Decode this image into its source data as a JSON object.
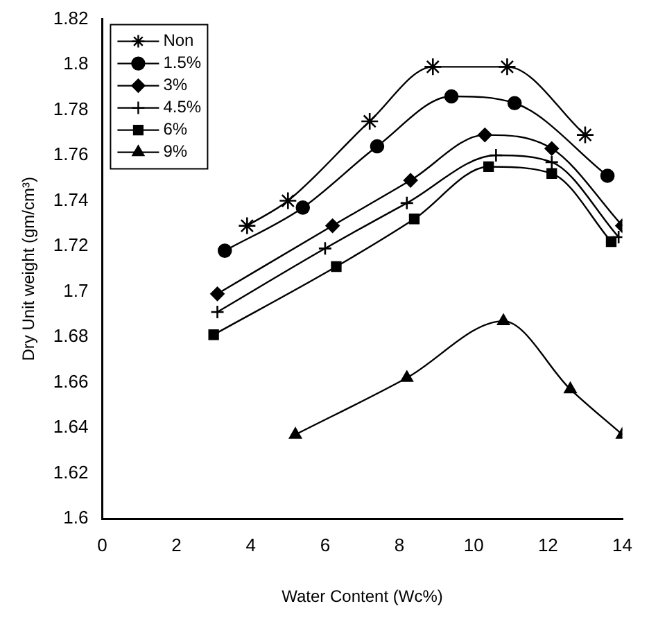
{
  "chart_data": {
    "type": "line",
    "xlabel": "Water Content (Wc%)",
    "ylabel": "Dry Unit weight (gm/cm³)",
    "xlim": [
      0,
      14
    ],
    "xticks": [
      0,
      2,
      4,
      6,
      8,
      10,
      12,
      14
    ],
    "ylim": [
      1.6,
      1.82
    ],
    "yticks": [
      1.6,
      1.62,
      1.64,
      1.66,
      1.68,
      1.7,
      1.72,
      1.74,
      1.76,
      1.78,
      1.8,
      1.82
    ],
    "grid": false,
    "legend": "top left",
    "line_style": "solid",
    "series": [
      {
        "name": "Non",
        "color": "#000000",
        "marker": "cross",
        "x": [
          3.9,
          5.0,
          7.2,
          8.9,
          10.9,
          13.0
        ],
        "values": [
          1.729,
          1.74,
          1.775,
          1.799,
          1.799,
          1.769
        ]
      },
      {
        "name": "1.5%",
        "color": "#000000",
        "marker": "circle",
        "x": [
          3.3,
          5.4,
          7.4,
          9.4,
          11.1,
          13.6
        ],
        "values": [
          1.718,
          1.737,
          1.764,
          1.786,
          1.783,
          1.751
        ]
      },
      {
        "name": "3%",
        "color": "#000000",
        "marker": "diamond",
        "x": [
          3.1,
          6.2,
          8.3,
          10.3,
          12.1,
          14.0
        ],
        "values": [
          1.699,
          1.729,
          1.749,
          1.769,
          1.763,
          1.729
        ]
      },
      {
        "name": "4.5%",
        "color": "#000000",
        "marker": "cross",
        "x": [
          3.1,
          6.0,
          8.2,
          10.6,
          12.1,
          13.9
        ],
        "values": [
          1.691,
          1.719,
          1.739,
          1.76,
          1.757,
          1.724
        ]
      },
      {
        "name": "6%",
        "color": "#000000",
        "marker": "square",
        "x": [
          3.0,
          6.3,
          8.4,
          10.4,
          12.1,
          13.7
        ],
        "values": [
          1.681,
          1.711,
          1.732,
          1.755,
          1.752,
          1.722
        ]
      },
      {
        "name": "9%",
        "color": "#000000",
        "marker": "triangle",
        "x": [
          5.2,
          8.2,
          10.8,
          12.6,
          14.0
        ],
        "values": [
          1.637,
          1.662,
          1.687,
          1.657,
          1.637
        ]
      }
    ]
  }
}
